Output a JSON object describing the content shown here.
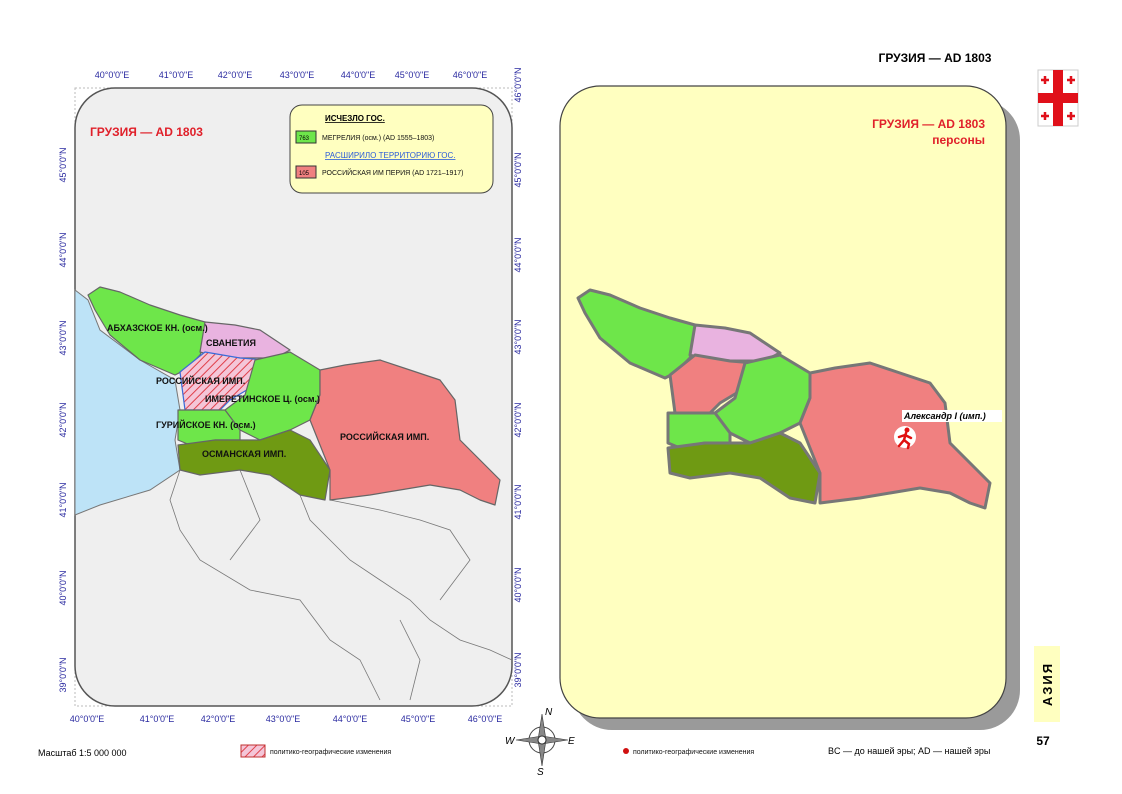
{
  "header": {
    "title": "ГРУЗИЯ — AD 1803"
  },
  "left_map": {
    "title": "ГРУЗИЯ — AD 1803",
    "longitudes": [
      "40°0'0\"E",
      "41°0'0\"E",
      "42°0'0\"E",
      "43°0'0\"E",
      "44°0'0\"E",
      "45°0'0\"E",
      "46°0'0\"E"
    ],
    "latitudes": [
      "46°0'0\"N",
      "45°0'0\"N",
      "44°0'0\"N",
      "43°0'0\"N",
      "42°0'0\"N",
      "41°0'0\"N",
      "40°0'0\"N",
      "39°0'0\"N"
    ],
    "legend": {
      "disappeared_heading": "ИСЧЕЗЛО ГОС.",
      "disappeared": [
        {
          "code": "763",
          "label": "МЕГРЕЛИЯ (осм.) (AD 1555–1803)"
        }
      ],
      "expanded_heading": "РАСШИРИЛО ТЕРРИТОРИЮ ГОС.",
      "expanded": [
        {
          "code": "105",
          "label": "РОССИЙСКАЯ ИМ ПЕРИЯ (AD 1721–1917)"
        }
      ]
    },
    "regions": [
      "АБХАЗСКОЕ КН. (осм.)",
      "СВАНЕТИЯ",
      "РОССИЙСКАЯ ИМП.",
      "ИМЕРЕТИНСКОЕ Ц. (осм.)",
      "ГУРИЙСКОЕ КН. (осм.)",
      "ОСМАНСКАЯ ИМП.",
      "РОССИЙСКАЯ ИМП."
    ]
  },
  "right_map": {
    "title": "ГРУЗИЯ — AD 1803",
    "subtitle": "персоны",
    "person": "Александр I (имп.)"
  },
  "compass": {
    "north": "N",
    "west": "W",
    "east": "E",
    "south": "S"
  },
  "footer": {
    "scale": "Масштаб 1:5 000 000",
    "changes_left": "политико-географические изменения",
    "changes_right": "политико-географические изменения",
    "era_note": "BC — до нашей эры; AD — нашей эры"
  },
  "side_tab": "АЗИЯ",
  "page_number": "57"
}
